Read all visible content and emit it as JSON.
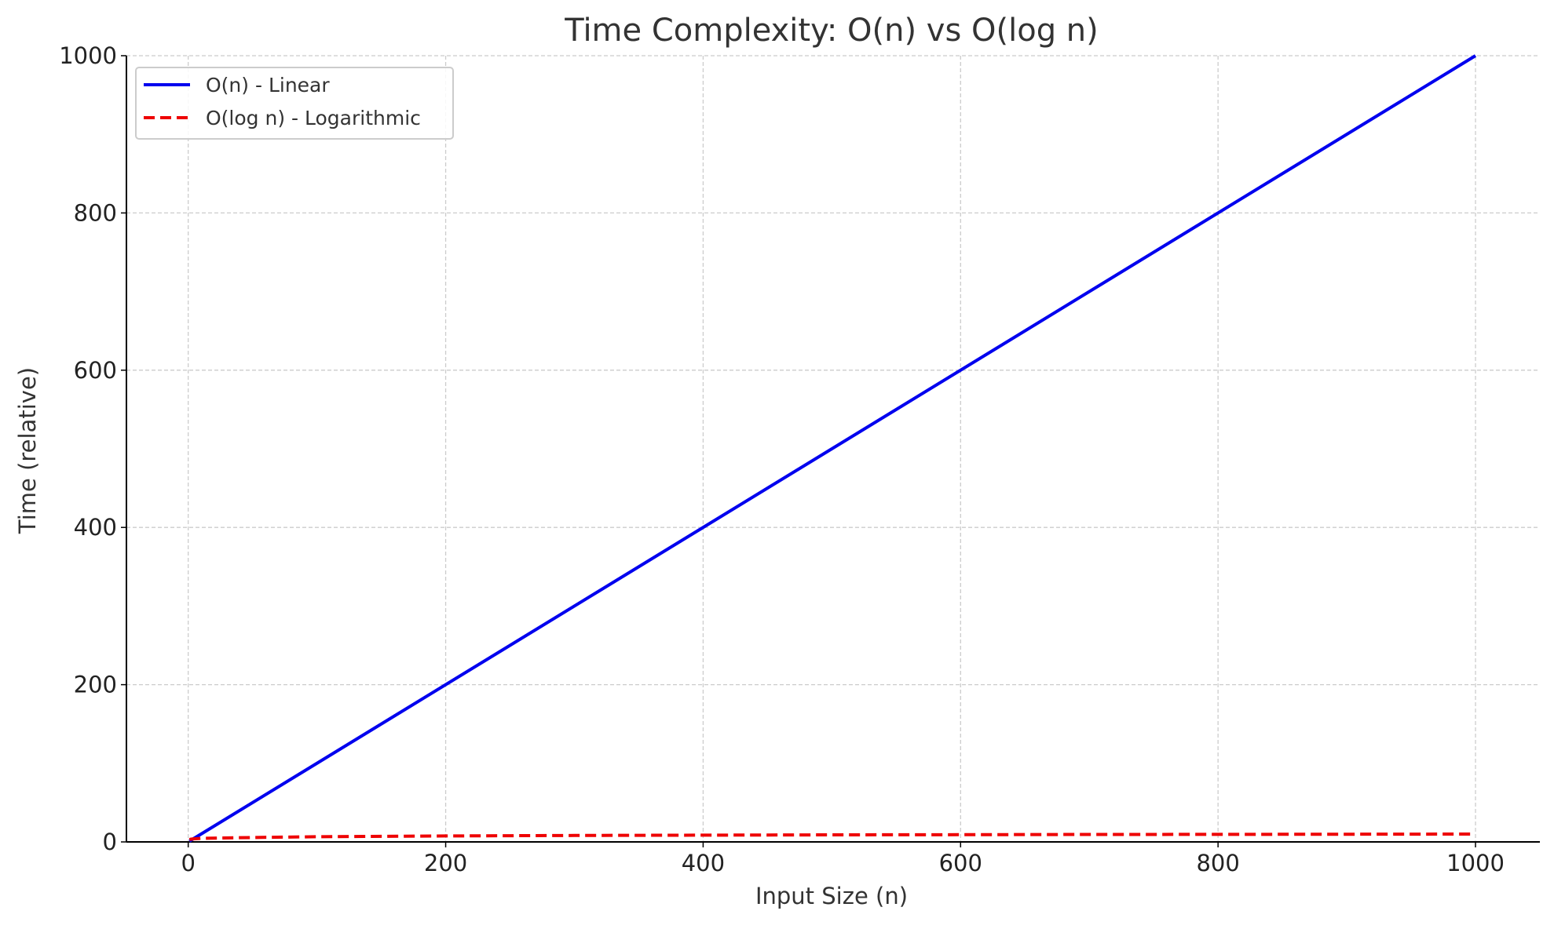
{
  "chart_data": {
    "type": "line",
    "title": "Time Complexity: O(n) vs O(log n)",
    "xlabel": "Input Size (n)",
    "ylabel": "Time (relative)",
    "xlim": [
      -48,
      1050
    ],
    "ylim": [
      0,
      1000
    ],
    "x_ticks": [
      0,
      200,
      400,
      600,
      800,
      1000
    ],
    "y_ticks": [
      0,
      200,
      400,
      600,
      800,
      1000
    ],
    "grid": true,
    "legend_position": "top-left",
    "series": [
      {
        "name": "O(n) - Linear",
        "color": "#0000ee",
        "style": "solid",
        "x": [
          1,
          1000
        ],
        "y": [
          1,
          1000
        ]
      },
      {
        "name": "O(log n) - Logarithmic",
        "color": "#ee0000",
        "style": "dashed",
        "x": [
          1,
          2,
          5,
          10,
          25,
          50,
          100,
          200,
          300,
          400,
          500,
          600,
          700,
          800,
          900,
          1000
        ],
        "y": [
          3,
          3.5,
          4,
          4.5,
          5,
          5.6,
          6.6,
          7.6,
          8.2,
          8.6,
          9,
          9.2,
          9.5,
          9.6,
          9.8,
          10
        ]
      }
    ]
  }
}
